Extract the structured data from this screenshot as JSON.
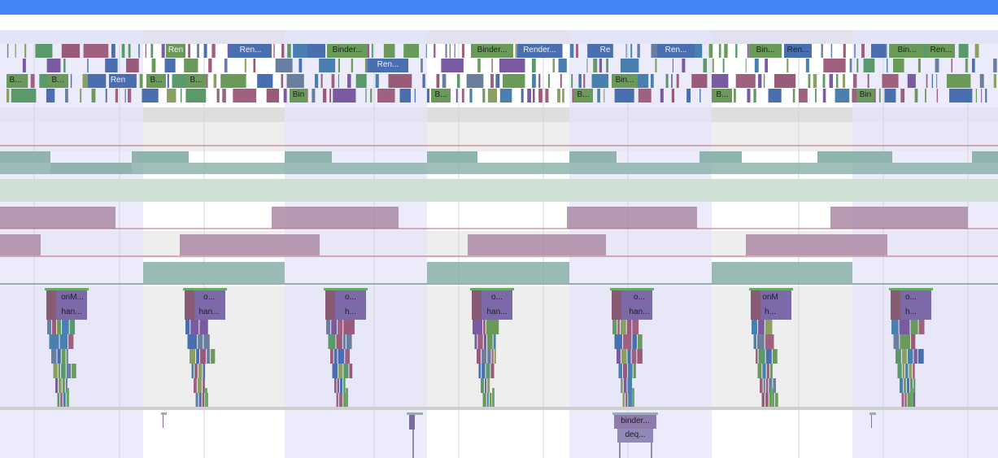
{
  "colors": {
    "topbar": "#4285f4",
    "highlight": "#e4e4fb",
    "band_gray": "#eeeeee",
    "green": "#6a9a5a",
    "blue": "#4a6fb0",
    "teal": "#8fb4ad",
    "mauve": "#ab8aa6",
    "purple": "#7b6aa7"
  },
  "markers": {
    "icon": "warning-marker-icon",
    "count": 7
  },
  "thread_slices": [
    {
      "label": "Ren"
    },
    {
      "label": "Ren..."
    },
    {
      "label": "Binder..."
    },
    {
      "label": "Ren..."
    },
    {
      "label": "Binder..."
    },
    {
      "label": "Render..."
    },
    {
      "label": "Re"
    },
    {
      "label": "Ren..."
    },
    {
      "label": "Bin..."
    },
    {
      "label": "Ren..."
    },
    {
      "label": "Bin..."
    },
    {
      "label": "Ren..."
    },
    {
      "label": "B..."
    },
    {
      "label": "B..."
    },
    {
      "label": "Ren"
    },
    {
      "label": "B..."
    },
    {
      "label": "B..."
    },
    {
      "label": "Bin..."
    },
    {
      "label": "Bin"
    },
    {
      "label": "B..."
    },
    {
      "label": "B..."
    },
    {
      "label": "B..."
    },
    {
      "label": "Bin"
    }
  ],
  "main_thread_stacks": [
    {
      "top": "onM...",
      "second": "han..."
    },
    {
      "top": "o...",
      "second": "han..."
    },
    {
      "top": "o...",
      "second": "h..."
    },
    {
      "top": "o...",
      "second": "han..."
    },
    {
      "top": "o...",
      "second": "han..."
    },
    {
      "top": "onM",
      "second": "h..."
    },
    {
      "top": "o...",
      "second": "h..."
    }
  ],
  "binder_slices": [
    {
      "label": "binder..."
    },
    {
      "label": "deq..."
    }
  ]
}
